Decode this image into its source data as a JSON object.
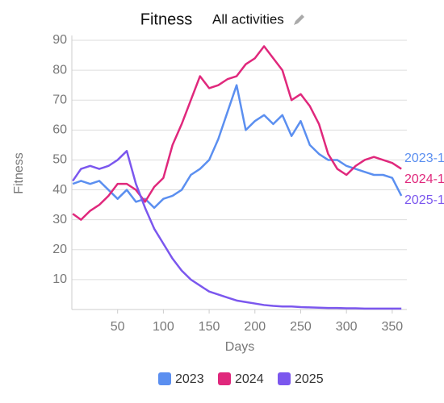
{
  "chart_data": {
    "type": "line",
    "title": "Fitness",
    "subtitle": "All activities",
    "x_label": "Days",
    "y_label": "Fitness",
    "x": [
      1,
      10,
      20,
      30,
      40,
      50,
      60,
      70,
      80,
      90,
      100,
      110,
      120,
      130,
      140,
      150,
      160,
      170,
      180,
      190,
      200,
      210,
      220,
      230,
      240,
      250,
      260,
      270,
      280,
      290,
      300,
      310,
      320,
      330,
      340,
      350,
      360
    ],
    "series": [
      {
        "name": "2023",
        "color": "#5b8ff0",
        "end_label": "2023-1",
        "values": [
          42,
          43,
          42,
          43,
          40,
          37,
          40,
          36,
          37,
          34,
          37,
          38,
          40,
          45,
          47,
          50,
          57,
          66,
          75,
          60,
          63,
          65,
          62,
          65,
          58,
          63,
          55,
          52,
          50,
          50,
          48,
          47,
          46,
          45,
          45,
          44,
          38
        ]
      },
      {
        "name": "2024",
        "color": "#e0287c",
        "end_label": "2024-1",
        "values": [
          32,
          30,
          33,
          35,
          38,
          42,
          42,
          40,
          36,
          41,
          44,
          55,
          62,
          70,
          78,
          74,
          75,
          77,
          78,
          82,
          84,
          88,
          84,
          80,
          70,
          72,
          68,
          62,
          52,
          47,
          45,
          48,
          50,
          51,
          50,
          49,
          47
        ]
      },
      {
        "name": "2025",
        "color": "#7b57ee",
        "end_label": "2025-1",
        "values": [
          43,
          47,
          48,
          47,
          48,
          50,
          53,
          42,
          34,
          27,
          22,
          17,
          13,
          10,
          8,
          6,
          5,
          4,
          3,
          2.5,
          2,
          1.5,
          1.2,
          1,
          1,
          0.8,
          0.7,
          0.6,
          0.5,
          0.5,
          0.4,
          0.4,
          0.3,
          0.3,
          0.3,
          0.3,
          0.3
        ]
      }
    ],
    "xlim": [
      0,
      366
    ],
    "ylim": [
      0,
      90
    ],
    "xticks": [
      50,
      100,
      150,
      200,
      250,
      300,
      350
    ],
    "yticks": [
      10,
      20,
      30,
      40,
      50,
      60,
      70,
      80,
      90
    ],
    "grid": true
  }
}
